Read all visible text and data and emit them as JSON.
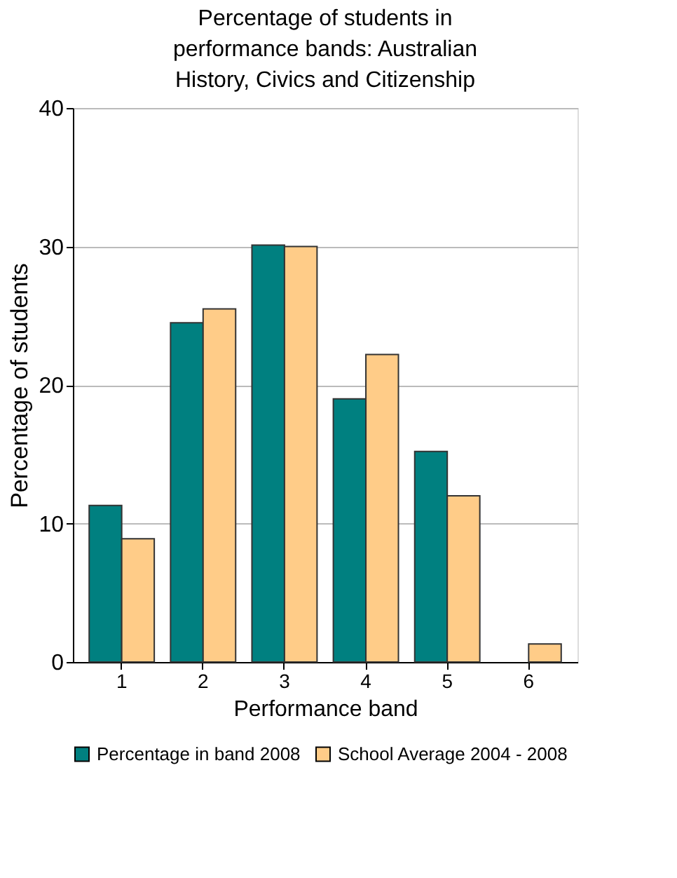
{
  "chart_data": {
    "type": "bar",
    "title": "Percentage of students in performance bands: Australian History, Civics and Citizenship",
    "xlabel": "Performance band",
    "ylabel": "Percentage of students",
    "categories": [
      "1",
      "2",
      "3",
      "4",
      "5",
      "6"
    ],
    "series": [
      {
        "name": "Percentage in band 2008",
        "color": "#008080",
        "values": [
          11.3,
          24.5,
          30.1,
          19.0,
          15.2,
          null
        ]
      },
      {
        "name": "School Average 2004 - 2008",
        "color": "#ffcc88",
        "values": [
          8.9,
          25.5,
          30.0,
          22.2,
          12.0,
          1.3
        ]
      }
    ],
    "ylim": [
      0,
      40
    ],
    "yticks": [
      0,
      10,
      20,
      30,
      40
    ],
    "grid": "y",
    "legend": "bottom"
  }
}
